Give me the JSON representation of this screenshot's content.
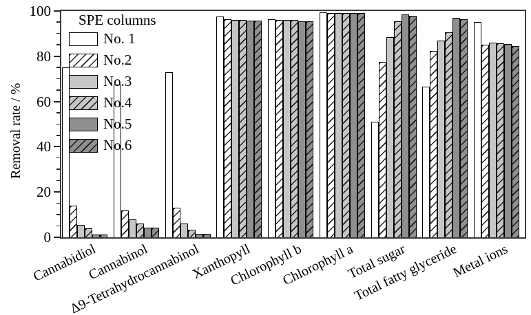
{
  "chart_data": {
    "type": "bar",
    "title": "",
    "ylabel": "Removal rate / %",
    "xlabel": "",
    "ylim": [
      0,
      100
    ],
    "yticks": [
      0,
      20,
      40,
      60,
      80,
      100
    ],
    "y_minor_step": 5,
    "grid": "off",
    "legend": {
      "title": "SPE columns",
      "position": "upper-left-inside"
    },
    "categories": [
      "Cannabidiol",
      "Cannabinol",
      "Δ9-Tetrahydrocannabinol",
      "Xanthopyll",
      "Chlorophyll b",
      "Chlorophyll a",
      "Total sugar",
      "Total fatty glyceride",
      "Metal ions"
    ],
    "series": [
      {
        "name": "No. 1",
        "fill": "#ffffff",
        "hatch": false,
        "values": [
          75,
          67.5,
          73,
          97.5,
          96.5,
          99.5,
          51,
          66.5,
          95
        ]
      },
      {
        "name": "No.2",
        "fill": "#ffffff",
        "hatch": true,
        "values": [
          14,
          12,
          13,
          96.5,
          96,
          99,
          77.5,
          82.5,
          85
        ]
      },
      {
        "name": "No.3",
        "fill": "#c6c6c6",
        "hatch": false,
        "values": [
          5.5,
          8,
          6,
          96,
          96,
          99,
          88.5,
          87,
          86
        ]
      },
      {
        "name": "No.4",
        "fill": "#c6c6c6",
        "hatch": true,
        "values": [
          4,
          6,
          3.2,
          96,
          96,
          99,
          95.5,
          90.5,
          85.8
        ]
      },
      {
        "name": "No.5",
        "fill": "#8f8f8f",
        "hatch": false,
        "values": [
          1.3,
          4.3,
          1.4,
          95.8,
          95.5,
          99,
          98.5,
          97,
          85.3
        ]
      },
      {
        "name": "No.6",
        "fill": "#8f8f8f",
        "hatch": true,
        "values": [
          1.3,
          4.3,
          1.4,
          95.8,
          95.5,
          99,
          98,
          96.5,
          84.5
        ]
      }
    ],
    "colors": {
      "axis": "#3c3c3c",
      "bar_border": "#000000",
      "hatch": "#000000",
      "background": "#ffffff"
    }
  }
}
